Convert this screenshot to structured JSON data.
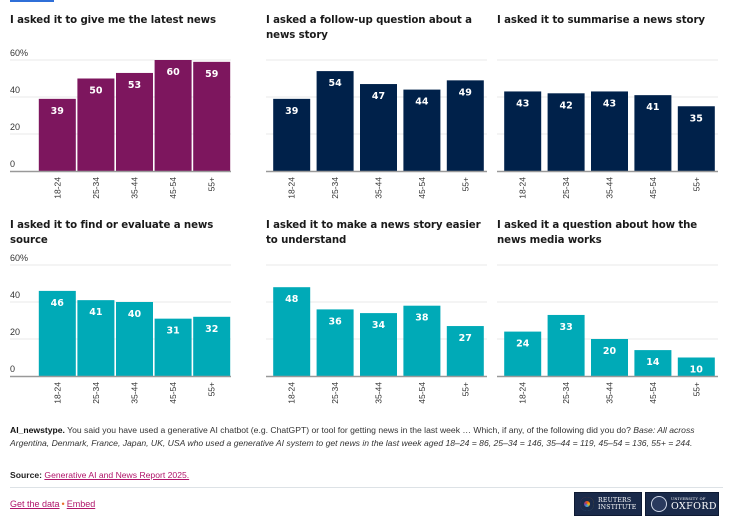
{
  "chart_data": [
    {
      "type": "bar",
      "title": "I asked it to give me the latest news",
      "categories": [
        "18-24",
        "25-34",
        "35-44",
        "45-54",
        "55+"
      ],
      "values": [
        39,
        50,
        53,
        60,
        59
      ],
      "color": "#7d165e",
      "ylim": [
        0,
        60
      ],
      "yticks": [
        "0",
        "20",
        "40",
        "60%"
      ],
      "show_yticks": true,
      "grid": true,
      "xlabel": "",
      "ylabel": ""
    },
    {
      "type": "bar",
      "title": "I asked a follow-up question about a news story",
      "categories": [
        "18-24",
        "25-34",
        "35-44",
        "45-54",
        "55+"
      ],
      "values": [
        39,
        54,
        47,
        44,
        49
      ],
      "color": "#00214a",
      "ylim": [
        0,
        60
      ],
      "yticks": [
        "0",
        "20",
        "40",
        "60%"
      ],
      "show_yticks": false,
      "grid": true,
      "xlabel": "",
      "ylabel": ""
    },
    {
      "type": "bar",
      "title": "I asked it to summarise a news story",
      "categories": [
        "18-24",
        "25-34",
        "35-44",
        "45-54",
        "55+"
      ],
      "values": [
        43,
        42,
        43,
        41,
        35
      ],
      "color": "#00214a",
      "ylim": [
        0,
        60
      ],
      "yticks": [
        "0",
        "20",
        "40",
        "60%"
      ],
      "show_yticks": false,
      "grid": true,
      "xlabel": "",
      "ylabel": ""
    },
    {
      "type": "bar",
      "title": "I asked it to find or evaluate a news source",
      "categories": [
        "18-24",
        "25-34",
        "35-44",
        "45-54",
        "55+"
      ],
      "values": [
        46,
        41,
        40,
        31,
        32
      ],
      "color": "#00aab7",
      "ylim": [
        0,
        60
      ],
      "yticks": [
        "0",
        "20",
        "40",
        "60%"
      ],
      "show_yticks": true,
      "grid": true,
      "xlabel": "",
      "ylabel": ""
    },
    {
      "type": "bar",
      "title": "I asked it to make a news story easier to understand",
      "categories": [
        "18-24",
        "25-34",
        "35-44",
        "45-54",
        "55+"
      ],
      "values": [
        48,
        36,
        34,
        38,
        27
      ],
      "color": "#00aab7",
      "ylim": [
        0,
        60
      ],
      "yticks": [
        "0",
        "20",
        "40",
        "60%"
      ],
      "show_yticks": false,
      "grid": true,
      "xlabel": "",
      "ylabel": ""
    },
    {
      "type": "bar",
      "title": "I asked it a question about how the news media works",
      "categories": [
        "18-24",
        "25-34",
        "35-44",
        "45-54",
        "55+"
      ],
      "values": [
        24,
        33,
        20,
        14,
        10
      ],
      "color": "#00aab7",
      "ylim": [
        0,
        60
      ],
      "yticks": [
        "0",
        "20",
        "40",
        "60%"
      ],
      "show_yticks": false,
      "grid": true,
      "xlabel": "",
      "ylabel": ""
    }
  ],
  "note": {
    "label": "AI_newstype.",
    "question": " You said you have used a generative AI chatbot (e.g. ChatGPT) or tool for getting news in the last week … Which, if any, of the following did you do? ",
    "base": "Base: All across Argentina, Denmark, France, Japan, UK, USA who used a generative AI system to get news in the last week aged 18–24 = 86, 25–34 = 146, 35–44 = 119, 45–54 = 136, 55+ = 244."
  },
  "source": {
    "label": "Source:",
    "link_text": "Generative AI and News Report 2025."
  },
  "footer": {
    "get_data": "Get the data",
    "separator": "•",
    "embed": "Embed",
    "logos": {
      "reuters_line1": "REUTERS",
      "reuters_line2": "INSTITUTE",
      "oxford_line1": "UNIVERSITY OF",
      "oxford_line2": "OXFORD"
    }
  }
}
